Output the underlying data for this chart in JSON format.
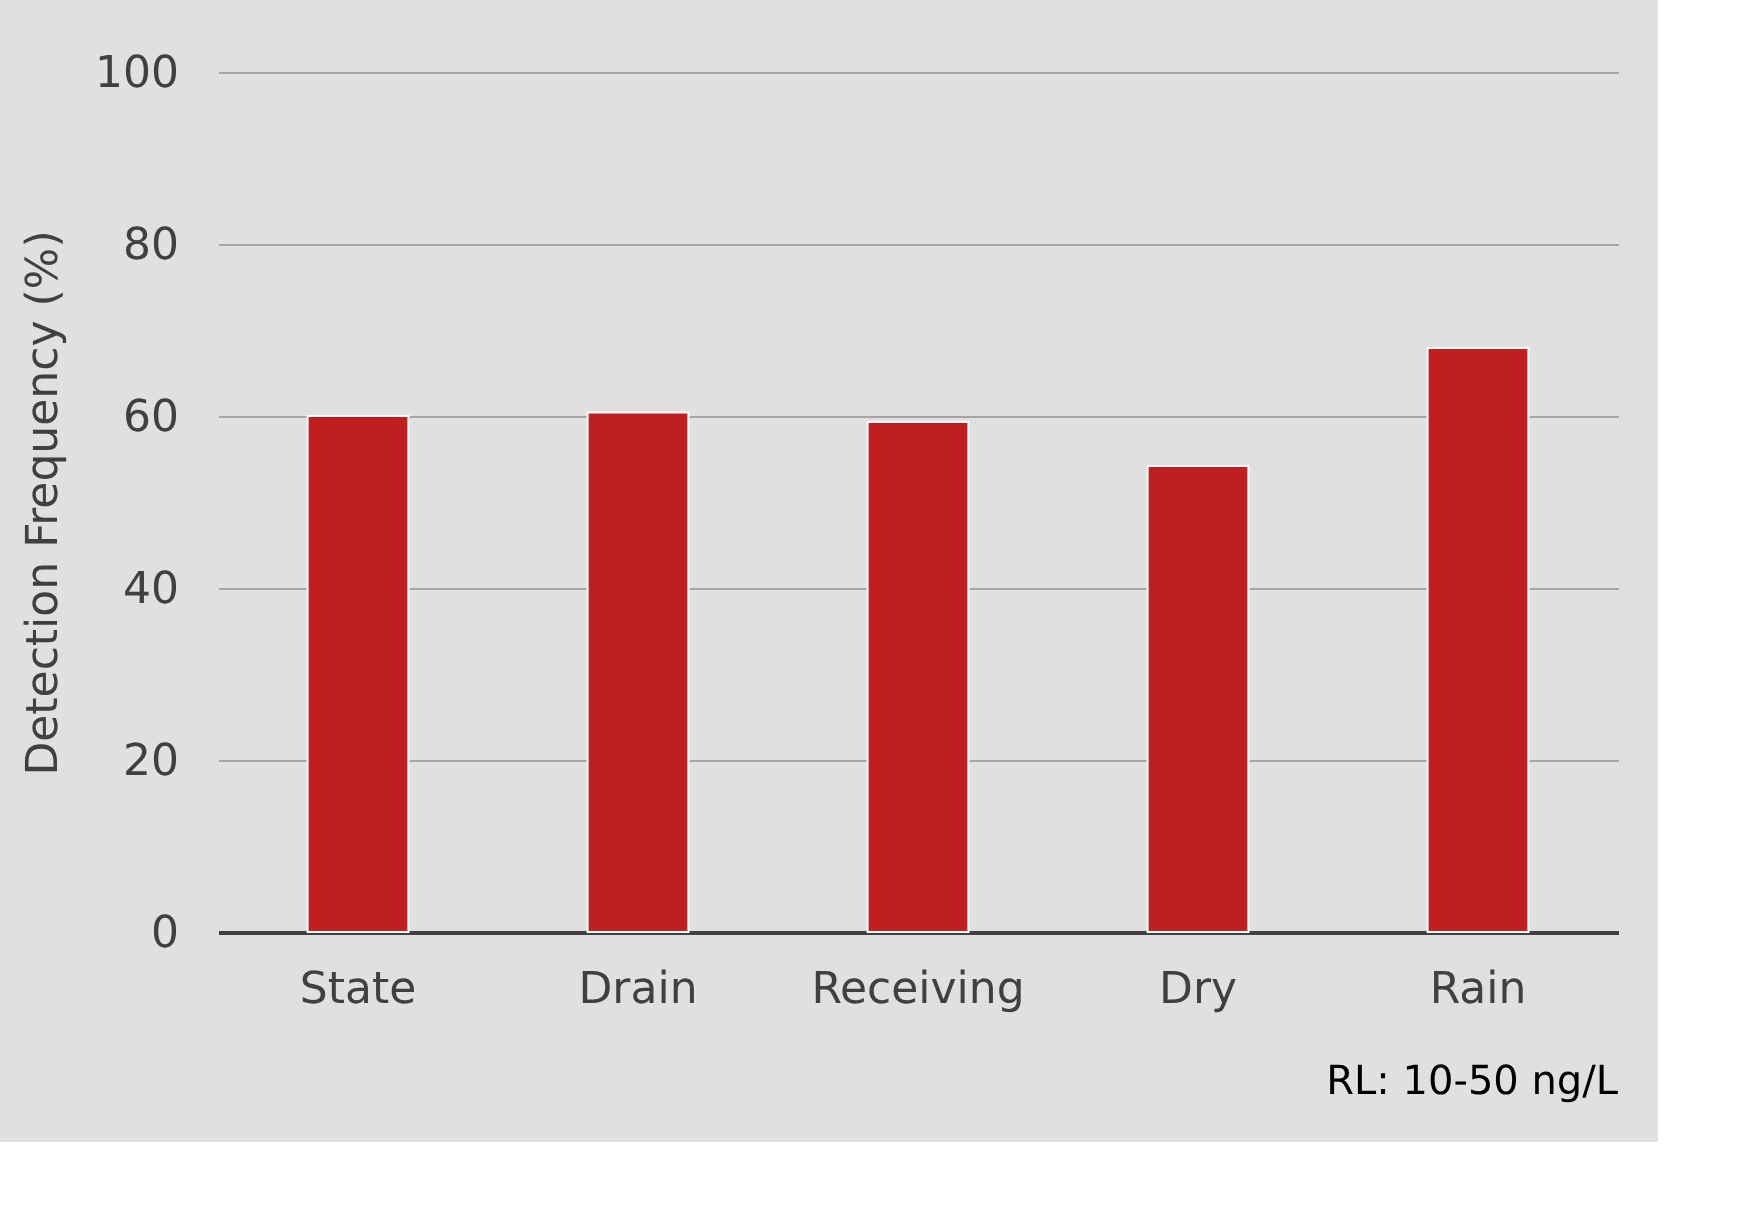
{
  "chart_data": {
    "type": "bar",
    "ylabel": "Detection Frequency (%)",
    "categories": [
      "State",
      "Drain",
      "Receiving",
      "Dry",
      "Rain"
    ],
    "values": [
      60,
      60.4,
      59.3,
      54.2,
      67.9
    ],
    "color": "#c01f1f",
    "ylim": [
      0,
      100
    ],
    "yticks": [
      0,
      20,
      40,
      60,
      80,
      100
    ],
    "grid": "y",
    "annotations": [
      "RL: 10-50 ng/L"
    ]
  }
}
